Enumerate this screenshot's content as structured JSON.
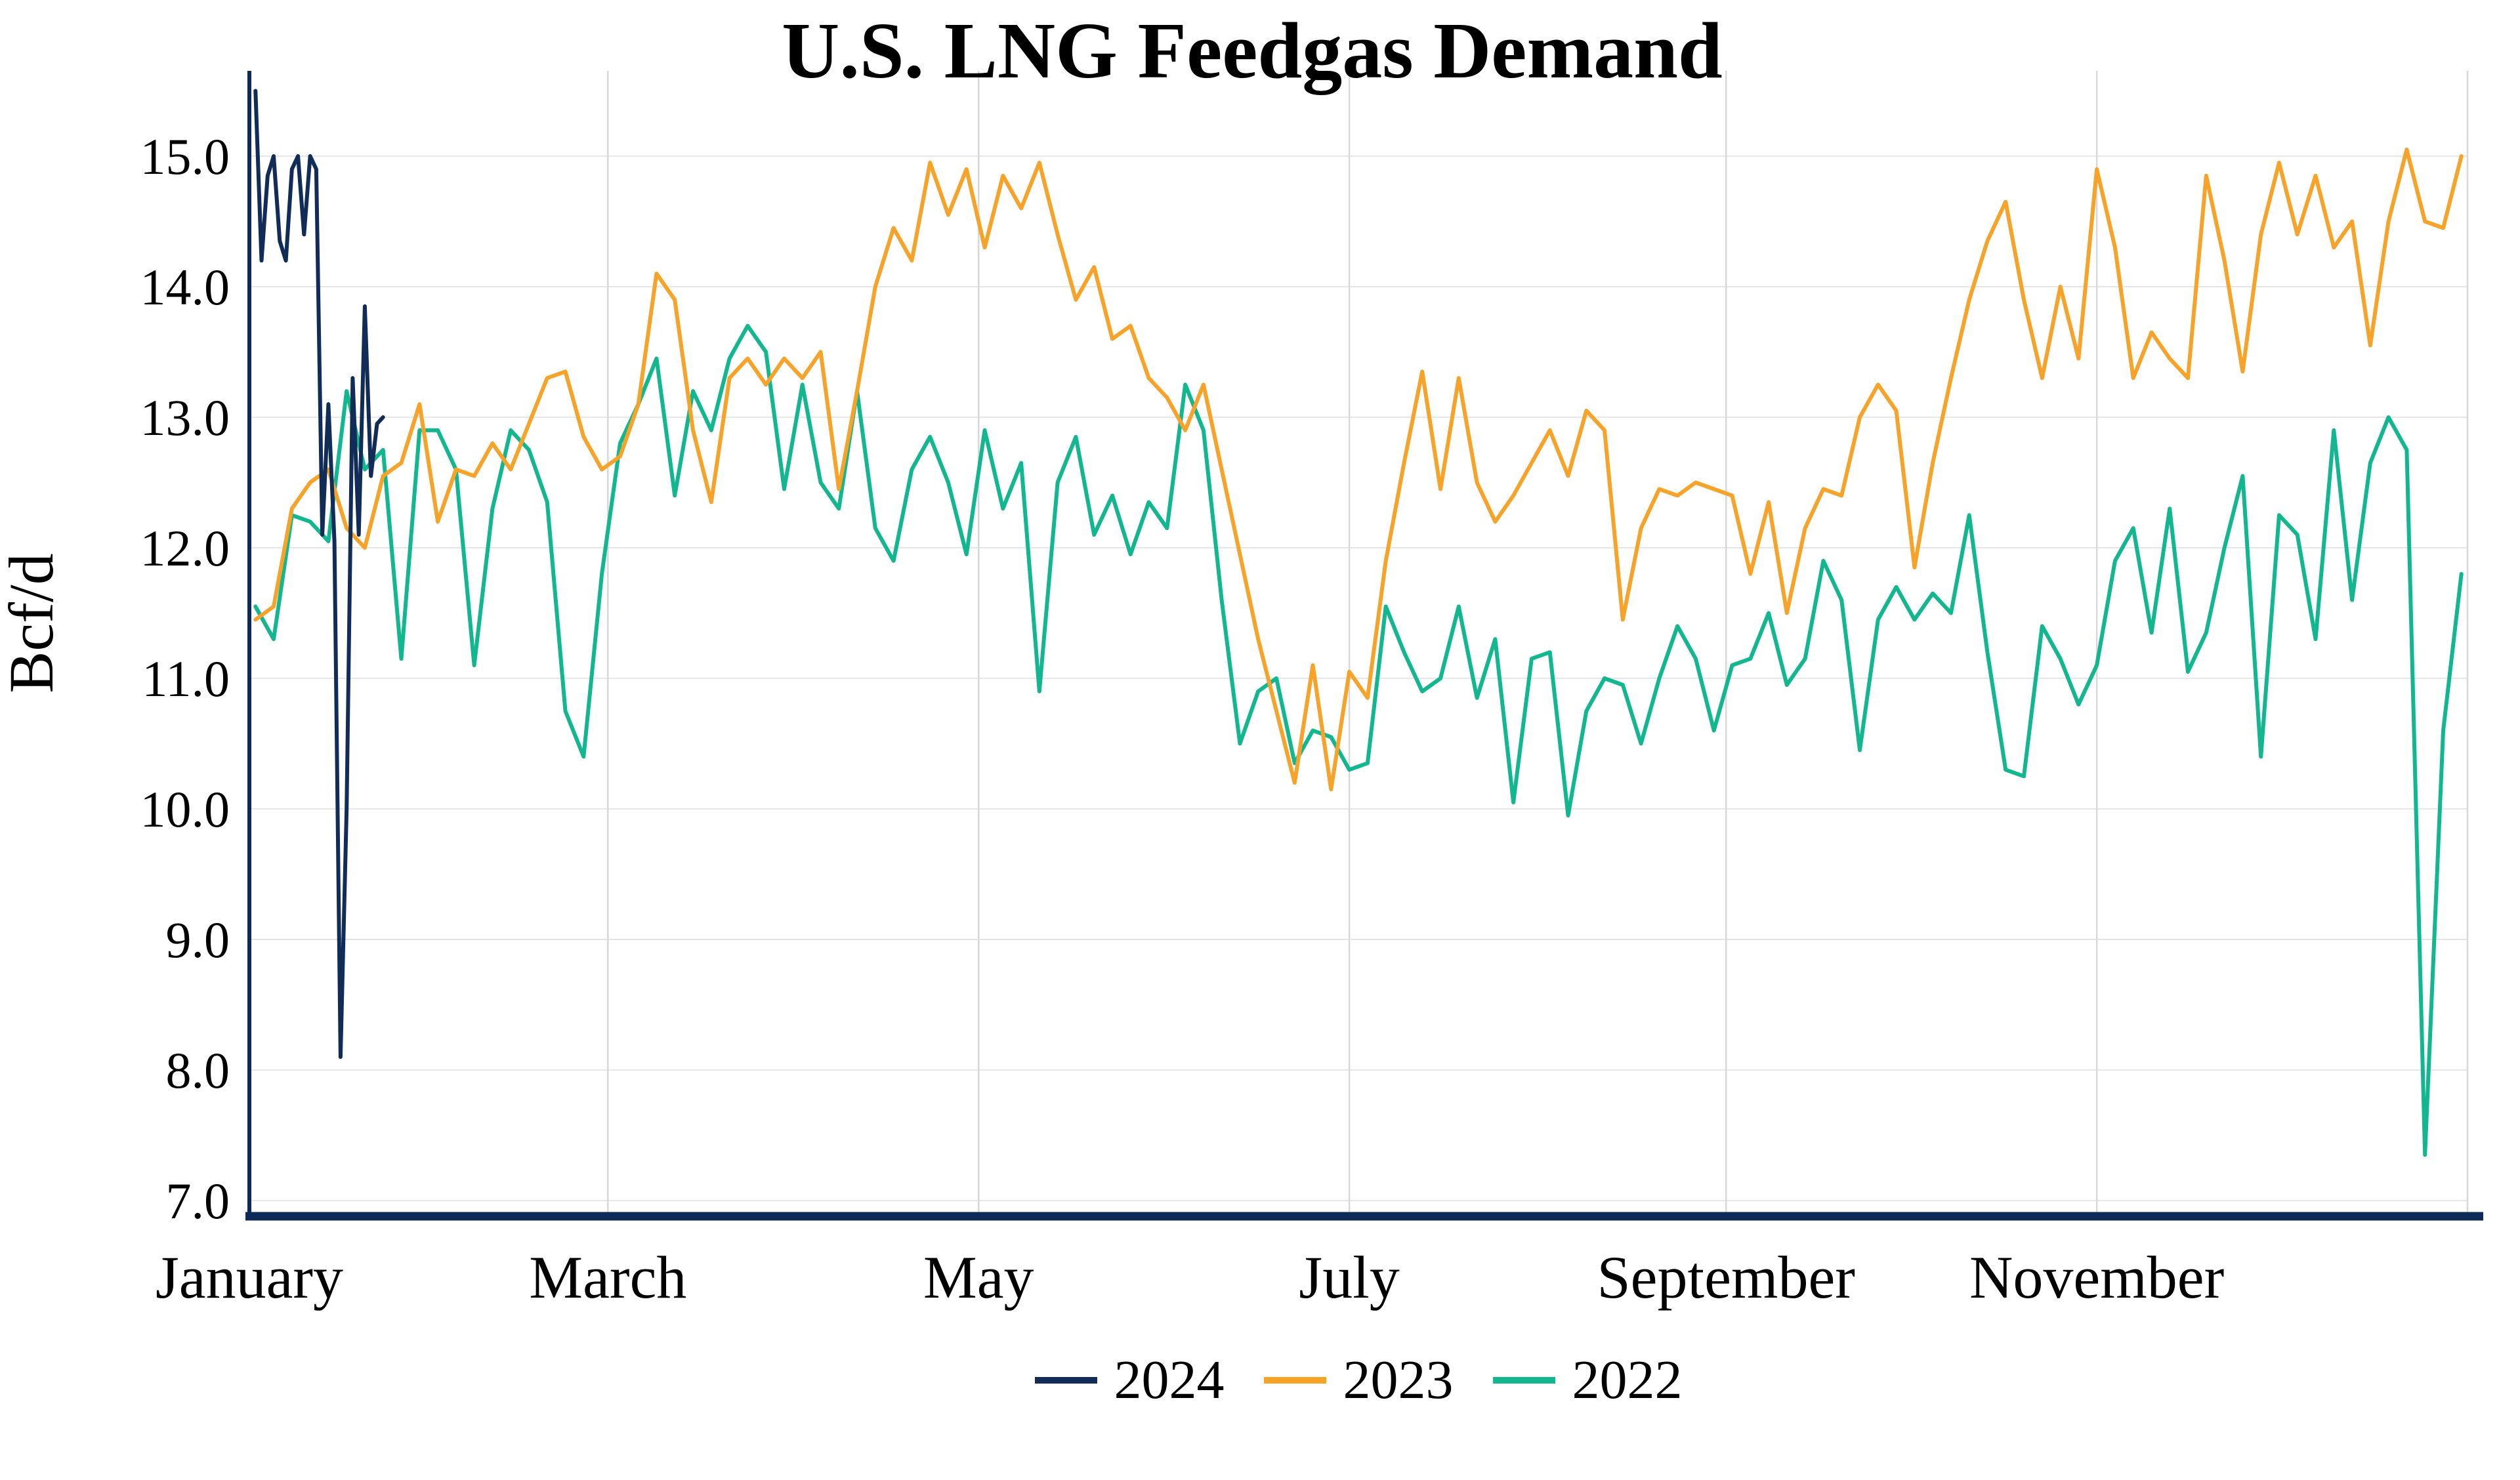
{
  "page": {
    "background": "#ffffff",
    "text_color": "#000000"
  },
  "chart_data": {
    "type": "line",
    "title": "U.S. LNG Feedgas Demand",
    "ylabel": "Bcf/d",
    "xlabel": "",
    "grid": true,
    "legend_position": "bottom-center",
    "axis_color": "#0e2a57",
    "gridline_color": "#d8d8d8",
    "x_axis": {
      "unit": "day_of_year",
      "range": [
        0,
        365
      ],
      "ticks": [
        {
          "day": 0,
          "label": "January"
        },
        {
          "day": 59,
          "label": "March"
        },
        {
          "day": 120,
          "label": "May"
        },
        {
          "day": 181,
          "label": "July"
        },
        {
          "day": 243,
          "label": "September"
        },
        {
          "day": 304,
          "label": "November"
        }
      ],
      "gridline_days": [
        59,
        120,
        181,
        243,
        304,
        365
      ]
    },
    "y_axis": {
      "range": [
        7.0,
        15.0
      ],
      "ticks": [
        {
          "value": 7.0,
          "label": "7.0"
        },
        {
          "value": 8.0,
          "label": "8.0"
        },
        {
          "value": 9.0,
          "label": "9.0"
        },
        {
          "value": 10.0,
          "label": "10.0"
        },
        {
          "value": 11.0,
          "label": "11.0"
        },
        {
          "value": 12.0,
          "label": "12.0"
        },
        {
          "value": 13.0,
          "label": "13.0"
        },
        {
          "value": 14.0,
          "label": "14.0"
        },
        {
          "value": 15.0,
          "label": "15.0"
        }
      ]
    },
    "series": [
      {
        "name": "2024",
        "color": "#102c57",
        "x": [
          1,
          2,
          3,
          4,
          5,
          6,
          7,
          8,
          9,
          10,
          11,
          12,
          13,
          14,
          15,
          16,
          17,
          18,
          19,
          20,
          21,
          22
        ],
        "values": [
          15.5,
          14.2,
          14.85,
          15.0,
          14.35,
          14.2,
          14.9,
          15.0,
          14.4,
          15.0,
          14.9,
          12.1,
          13.1,
          12.05,
          8.1,
          10.0,
          13.3,
          12.1,
          13.85,
          12.55,
          12.95,
          13.0
        ]
      },
      {
        "name": "2023",
        "color": "#f7a329",
        "x": [
          1,
          4,
          7,
          10,
          13,
          16,
          19,
          22,
          25,
          28,
          31,
          34,
          37,
          40,
          43,
          46,
          49,
          52,
          55,
          58,
          61,
          64,
          67,
          70,
          73,
          76,
          79,
          82,
          85,
          88,
          91,
          94,
          97,
          100,
          103,
          106,
          109,
          112,
          115,
          118,
          121,
          124,
          127,
          130,
          133,
          136,
          139,
          142,
          145,
          148,
          151,
          154,
          157,
          160,
          163,
          166,
          169,
          172,
          175,
          178,
          181,
          184,
          187,
          190,
          193,
          196,
          199,
          202,
          205,
          208,
          211,
          214,
          217,
          220,
          223,
          226,
          229,
          232,
          235,
          238,
          241,
          244,
          247,
          250,
          253,
          256,
          259,
          262,
          265,
          268,
          271,
          274,
          277,
          280,
          283,
          286,
          289,
          292,
          295,
          298,
          301,
          304,
          307,
          310,
          313,
          316,
          319,
          322,
          325,
          328,
          331,
          334,
          337,
          340,
          343,
          346,
          349,
          352,
          355,
          358,
          361,
          364
        ],
        "values": [
          11.45,
          11.55,
          12.3,
          12.5,
          12.6,
          12.15,
          12.0,
          12.55,
          12.65,
          13.1,
          12.2,
          12.6,
          12.55,
          12.8,
          12.6,
          12.95,
          13.3,
          13.35,
          12.85,
          12.6,
          12.7,
          13.1,
          14.1,
          13.9,
          12.9,
          12.35,
          13.3,
          13.45,
          13.25,
          13.45,
          13.3,
          13.5,
          12.45,
          13.2,
          14.0,
          14.45,
          14.2,
          14.95,
          14.55,
          14.9,
          14.3,
          14.85,
          14.6,
          14.95,
          14.4,
          13.9,
          14.15,
          13.6,
          13.7,
          13.3,
          13.15,
          12.9,
          13.25,
          12.6,
          11.95,
          11.3,
          10.75,
          10.2,
          11.1,
          10.15,
          11.05,
          10.85,
          11.9,
          12.65,
          13.35,
          12.45,
          13.3,
          12.5,
          12.2,
          12.4,
          12.65,
          12.9,
          12.55,
          13.05,
          12.9,
          11.45,
          12.15,
          12.45,
          12.4,
          12.5,
          12.45,
          12.4,
          11.8,
          12.35,
          11.5,
          12.15,
          12.45,
          12.4,
          13.0,
          13.25,
          13.05,
          11.85,
          12.65,
          13.3,
          13.9,
          14.35,
          14.65,
          13.9,
          13.3,
          14.0,
          13.45,
          14.9,
          14.3,
          13.3,
          13.65,
          13.45,
          13.3,
          14.85,
          14.2,
          13.35,
          14.4,
          14.95,
          14.4,
          14.85,
          14.3,
          14.5,
          13.55,
          14.5,
          15.05,
          14.5,
          14.45,
          15.0
        ]
      },
      {
        "name": "2022",
        "color": "#12b790",
        "x": [
          1,
          4,
          7,
          10,
          13,
          16,
          19,
          22,
          25,
          28,
          31,
          34,
          37,
          40,
          43,
          46,
          49,
          52,
          55,
          58,
          61,
          64,
          67,
          70,
          73,
          76,
          79,
          82,
          85,
          88,
          91,
          94,
          97,
          100,
          103,
          106,
          109,
          112,
          115,
          118,
          121,
          124,
          127,
          130,
          133,
          136,
          139,
          142,
          145,
          148,
          151,
          154,
          157,
          160,
          163,
          166,
          169,
          172,
          175,
          178,
          181,
          184,
          187,
          190,
          193,
          196,
          199,
          202,
          205,
          208,
          211,
          214,
          217,
          220,
          223,
          226,
          229,
          232,
          235,
          238,
          241,
          244,
          247,
          250,
          253,
          256,
          259,
          262,
          265,
          268,
          271,
          274,
          277,
          280,
          283,
          286,
          289,
          292,
          295,
          298,
          301,
          304,
          307,
          310,
          313,
          316,
          319,
          322,
          325,
          328,
          331,
          334,
          337,
          340,
          343,
          346,
          349,
          352,
          355,
          358,
          361,
          364
        ],
        "values": [
          11.55,
          11.3,
          12.25,
          12.2,
          12.05,
          13.2,
          12.6,
          12.75,
          11.15,
          12.9,
          12.9,
          12.6,
          11.1,
          12.3,
          12.9,
          12.75,
          12.35,
          10.75,
          10.4,
          11.8,
          12.8,
          13.1,
          13.45,
          12.4,
          13.2,
          12.9,
          13.45,
          13.7,
          13.5,
          12.45,
          13.25,
          12.5,
          12.3,
          13.2,
          12.15,
          11.9,
          12.6,
          12.85,
          12.5,
          11.95,
          12.9,
          12.3,
          12.65,
          10.9,
          12.5,
          12.85,
          12.1,
          12.4,
          11.95,
          12.35,
          12.15,
          13.25,
          12.9,
          11.6,
          10.5,
          10.9,
          11.0,
          10.35,
          10.6,
          10.55,
          10.3,
          10.35,
          11.55,
          11.2,
          10.9,
          11.0,
          11.55,
          10.85,
          11.3,
          10.05,
          11.15,
          11.2,
          9.95,
          10.75,
          11.0,
          10.95,
          10.5,
          11.0,
          11.4,
          11.15,
          10.6,
          11.1,
          11.15,
          11.5,
          10.95,
          11.15,
          11.9,
          11.6,
          10.45,
          11.45,
          11.7,
          11.45,
          11.65,
          11.5,
          12.25,
          11.2,
          10.3,
          10.25,
          11.4,
          11.15,
          10.8,
          11.1,
          11.9,
          12.15,
          11.35,
          12.3,
          11.05,
          11.35,
          12.0,
          12.55,
          10.4,
          12.25,
          12.1,
          11.3,
          12.9,
          11.6,
          12.65,
          13.0,
          12.75,
          7.35,
          10.6,
          11.8
        ]
      }
    ]
  }
}
